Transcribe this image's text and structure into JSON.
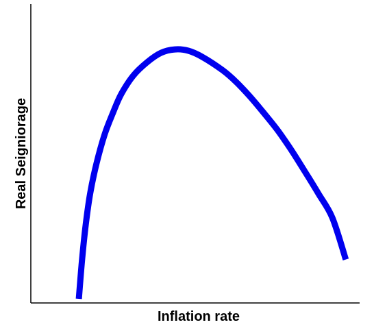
{
  "chart_data": {
    "type": "line",
    "title": "",
    "xlabel": "Inflation rate",
    "ylabel": "Real Seigniorage",
    "x_ticks": false,
    "y_ticks": false,
    "grid": false,
    "legend": false,
    "xlim": [
      0,
      100
    ],
    "ylim": [
      0,
      100
    ],
    "series": [
      {
        "name": "",
        "color": "#0000ee",
        "x": [
          14.6,
          15.6,
          16.7,
          18.1,
          20.0,
          22.5,
          25.0,
          27.5,
          31.2,
          35.4,
          39.6,
          43.8,
          47.9,
          52.1,
          58.3,
          62.5,
          66.7,
          70.8,
          75.0,
          79.2,
          83.3,
          87.5,
          91.7,
          95.8
        ],
        "y": [
          0,
          15,
          28,
          40,
          51,
          62,
          70,
          77,
          84,
          89,
          92.5,
          93.8,
          93.3,
          91,
          86,
          81.5,
          76,
          70,
          63.5,
          56,
          48,
          39.5,
          30.5,
          14.8
        ]
      }
    ]
  }
}
